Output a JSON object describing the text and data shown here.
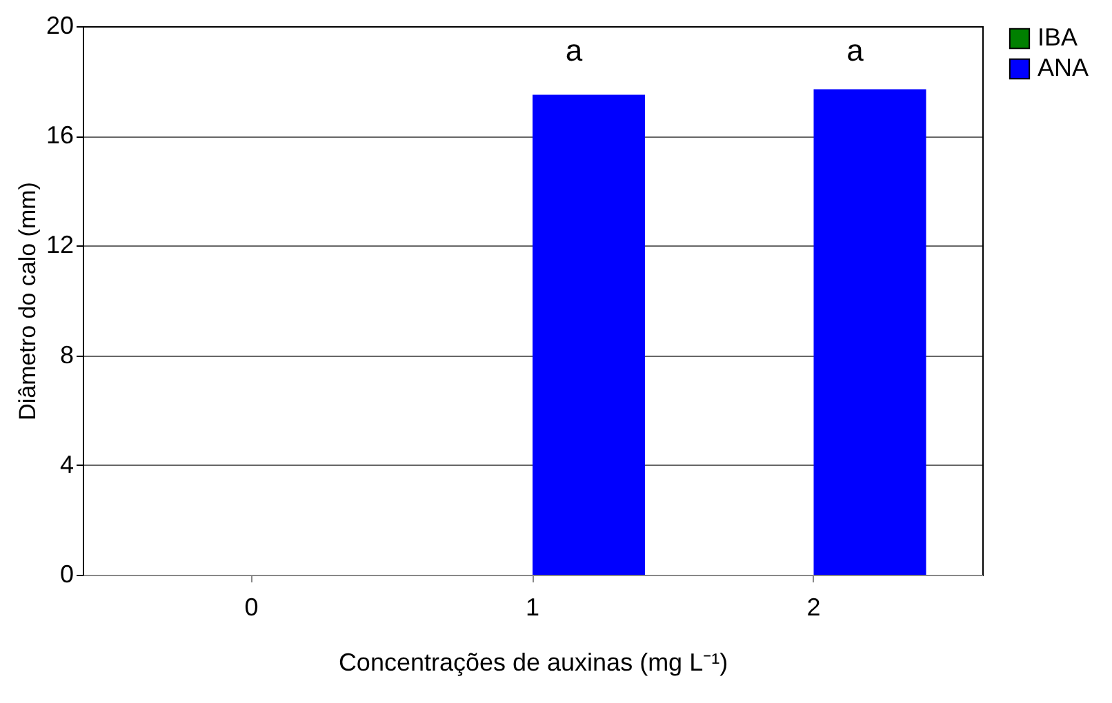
{
  "chart_data": {
    "type": "bar",
    "xlabel": "Concentrações de auxinas (mg L⁻¹)",
    "ylabel": "Diâmetro do calo (mm)",
    "categories": [
      "0",
      "1",
      "2"
    ],
    "series": [
      {
        "name": "IBA",
        "color": "#008000",
        "values": [
          0,
          0,
          0
        ]
      },
      {
        "name": "ANA",
        "color": "#0000ff",
        "values": [
          0,
          17.5,
          17.7
        ]
      }
    ],
    "ylim": [
      0,
      20
    ],
    "yticks": [
      0,
      4,
      8,
      12,
      16,
      20
    ],
    "grid": "y",
    "legend": "right",
    "annotations": [
      "a",
      "a"
    ]
  }
}
